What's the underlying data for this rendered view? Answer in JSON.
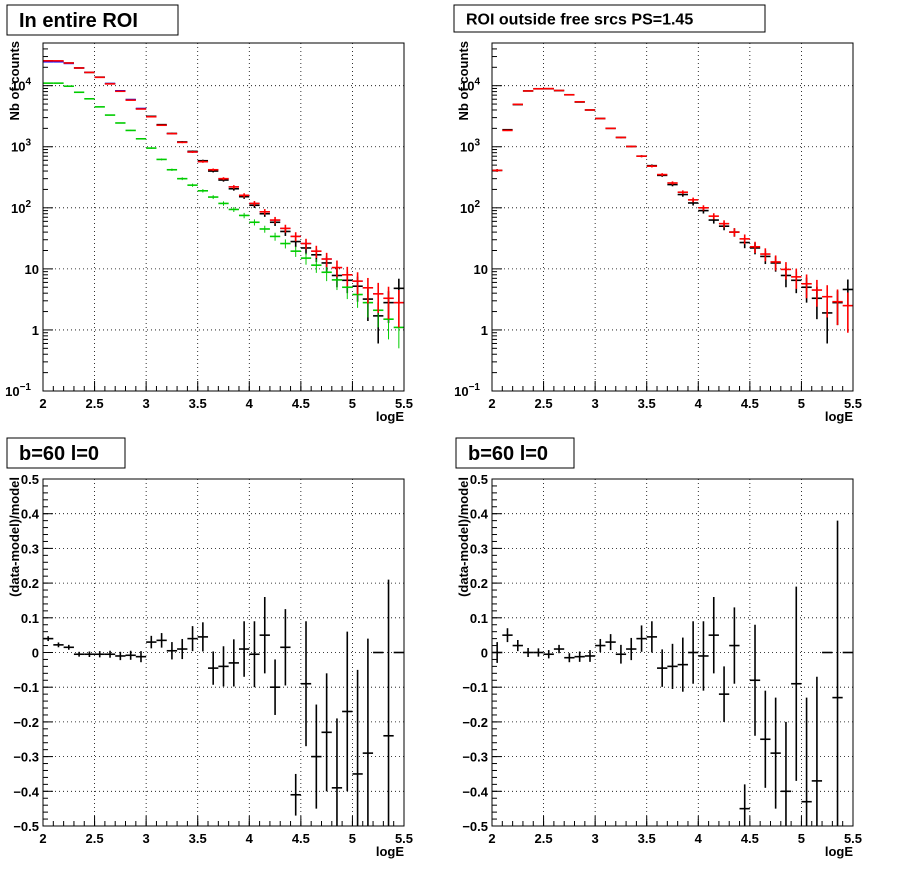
{
  "chart_data": [
    {
      "type": "scatter",
      "title": "In entire ROI",
      "xlabel": "logE",
      "ylabel": "Nb of counts",
      "xlim": [
        2,
        5.5
      ],
      "ylim": [
        0.1,
        50000
      ],
      "ylog": true,
      "grid": true,
      "x_ticks": [
        "2",
        "2.5",
        "3",
        "3.5",
        "4",
        "4.5",
        "5",
        "5.5"
      ],
      "y_ticks": [
        {
          "value": 0.1,
          "base": "10",
          "exp": "−1"
        },
        {
          "value": 1,
          "label": "1"
        },
        {
          "value": 10,
          "label": "10"
        },
        {
          "value": 100,
          "base": "10",
          "exp": "2"
        },
        {
          "value": 1000,
          "base": "10",
          "exp": "3"
        },
        {
          "value": 10000,
          "base": "10",
          "exp": "4"
        }
      ],
      "series": [
        {
          "color": "#000000",
          "x": [
            2.05,
            2.15,
            2.25,
            2.35,
            2.45,
            2.55,
            2.65,
            2.75,
            2.85,
            2.95,
            3.05,
            3.15,
            3.25,
            3.35,
            3.45,
            3.55,
            3.65,
            3.75,
            3.85,
            3.95,
            4.05,
            4.15,
            4.25,
            4.35,
            4.45,
            4.55,
            4.65,
            4.75,
            4.85,
            4.95,
            5.05,
            5.15,
            5.25,
            5.35,
            5.45
          ],
          "y": [
            25500,
            25000,
            23500,
            19500,
            16500,
            13800,
            10800,
            8200,
            5900,
            4200,
            3150,
            2300,
            1650,
            1200,
            840,
            590,
            400,
            285,
            205,
            152,
            110,
            80,
            58,
            41,
            28,
            22,
            17,
            12.5,
            7.8,
            6.5,
            5.2,
            3.2,
            1.7,
            2.8,
            4.8
          ],
          "err": [
            160,
            158,
            153,
            140,
            128,
            117,
            104,
            90,
            77,
            65,
            56,
            48,
            41,
            35,
            29,
            24,
            20,
            17,
            14,
            12,
            10.5,
            8.9,
            7.6,
            6.4,
            5.3,
            4.7,
            4.1,
            3.5,
            2.8,
            2.5,
            2.3,
            1.8,
            1.1,
            1.5,
            2.1
          ]
        },
        {
          "color": "#0000ff",
          "x": [
            2.05,
            2.15,
            2.25,
            2.35,
            2.45,
            2.55,
            2.65,
            2.75,
            2.85,
            2.95,
            3.05,
            3.15,
            3.25,
            3.35,
            3.45,
            3.55,
            3.65,
            3.75,
            3.85,
            3.95,
            4.05,
            4.15,
            4.25,
            4.35,
            4.45,
            4.55,
            4.65,
            4.75,
            4.85,
            4.95,
            5.05,
            5.15,
            5.25,
            5.35,
            5.45
          ],
          "y": [
            24500,
            24500,
            23000,
            19500,
            16500,
            13700,
            10900,
            8300,
            5950,
            4250,
            3100,
            2250,
            1640,
            1180,
            820,
            570,
            420,
            300,
            220,
            160,
            118,
            86,
            63,
            46,
            34,
            26,
            19.5,
            14.5,
            10.5,
            8,
            6.3,
            4.9,
            3.9,
            3.3,
            2.8
          ],
          "err": [
            0,
            0,
            0,
            0,
            0,
            0,
            0,
            0,
            0,
            0,
            0,
            0,
            0,
            0,
            0,
            0,
            0,
            0,
            0,
            0,
            0,
            0,
            0,
            0,
            0,
            0,
            0,
            0,
            0,
            0,
            0,
            0,
            0,
            0,
            0
          ]
        },
        {
          "color": "#00cc00",
          "x": [
            2.05,
            2.15,
            2.25,
            2.35,
            2.45,
            2.55,
            2.65,
            2.75,
            2.85,
            2.95,
            3.05,
            3.15,
            3.25,
            3.35,
            3.45,
            3.55,
            3.65,
            3.75,
            3.85,
            3.95,
            4.05,
            4.15,
            4.25,
            4.35,
            4.45,
            4.55,
            4.65,
            4.75,
            4.85,
            4.95,
            5.05,
            5.15,
            5.25,
            5.35,
            5.45
          ],
          "y": [
            11000,
            11000,
            9800,
            7800,
            6100,
            4500,
            3300,
            2450,
            1850,
            1350,
            950,
            620,
            420,
            300,
            235,
            190,
            150,
            118,
            94,
            75,
            58,
            45,
            34,
            26,
            19.5,
            15,
            11.5,
            8.8,
            6.6,
            5,
            3.8,
            2.8,
            2.1,
            1.5,
            1.1
          ],
          "err": [
            100,
            100,
            95,
            85,
            75,
            65,
            55,
            47,
            41,
            35,
            29,
            23,
            19,
            16,
            14,
            12,
            11,
            9.7,
            8.6,
            7.6,
            6.7,
            5.9,
            5.1,
            4.4,
            3.8,
            3.3,
            2.9,
            2.5,
            2.1,
            1.8,
            1.5,
            1.2,
            1,
            0.8,
            0.6
          ]
        },
        {
          "color": "#ff0000",
          "x": [
            2.05,
            2.15,
            2.25,
            2.35,
            2.45,
            2.55,
            2.65,
            2.75,
            2.85,
            2.95,
            3.05,
            3.15,
            3.25,
            3.35,
            3.45,
            3.55,
            3.65,
            3.75,
            3.85,
            3.95,
            4.05,
            4.15,
            4.25,
            4.35,
            4.45,
            4.55,
            4.65,
            4.75,
            4.85,
            4.95,
            5.05,
            5.15,
            5.25,
            5.35,
            5.45
          ],
          "y": [
            25500,
            25500,
            23500,
            19500,
            16500,
            13700,
            10700,
            8100,
            5800,
            4150,
            3100,
            2250,
            1640,
            1180,
            820,
            570,
            420,
            300,
            220,
            160,
            118,
            86,
            63,
            46,
            34,
            26,
            19.5,
            14.5,
            10.5,
            8,
            6.3,
            4.9,
            3.9,
            3.3,
            2.8
          ],
          "err": [
            160,
            160,
            153,
            140,
            128,
            117,
            103,
            90,
            76,
            64,
            56,
            47,
            40,
            34,
            29,
            24,
            20,
            17,
            15,
            13,
            11,
            9.3,
            7.9,
            6.8,
            5.8,
            5.1,
            4.4,
            3.8,
            3.2,
            2.8,
            2.5,
            2.2,
            2,
            1.8,
            1.7
          ]
        }
      ]
    },
    {
      "type": "scatter",
      "title": "ROI outside free srcs PS=1.45",
      "xlabel": "logE",
      "ylabel": "Nb of counts",
      "xlim": [
        2,
        5.5
      ],
      "ylim": [
        0.1,
        50000
      ],
      "ylog": true,
      "grid": true,
      "x_ticks": [
        "2",
        "2.5",
        "3",
        "3.5",
        "4",
        "4.5",
        "5",
        "5.5"
      ],
      "y_ticks": [
        {
          "value": 0.1,
          "base": "10",
          "exp": "−1"
        },
        {
          "value": 1,
          "label": "1"
        },
        {
          "value": 10,
          "label": "10"
        },
        {
          "value": 100,
          "base": "10",
          "exp": "2"
        },
        {
          "value": 1000,
          "base": "10",
          "exp": "3"
        },
        {
          "value": 10000,
          "base": "10",
          "exp": "4"
        }
      ],
      "series": [
        {
          "color": "#000000",
          "x": [
            2.05,
            2.15,
            2.25,
            2.35,
            2.45,
            2.55,
            2.65,
            2.75,
            2.85,
            2.95,
            3.05,
            3.15,
            3.25,
            3.35,
            3.45,
            3.55,
            3.65,
            3.75,
            3.85,
            3.95,
            4.05,
            4.15,
            4.25,
            4.35,
            4.45,
            4.55,
            4.65,
            4.75,
            4.85,
            4.95,
            5.05,
            5.15,
            5.25,
            5.35,
            5.45
          ],
          "y": [
            410,
            1900,
            4900,
            8200,
            8900,
            8900,
            8300,
            7100,
            5400,
            4000,
            2900,
            2000,
            1420,
            1010,
            700,
            490,
            340,
            240,
            165,
            120,
            90,
            63,
            50,
            40,
            27,
            22,
            16,
            12.5,
            7.8,
            6.5,
            5,
            3.3,
            1.9,
            2.8,
            4.6
          ],
          "err": [
            20,
            44,
            70,
            91,
            94,
            94,
            91,
            84,
            73,
            63,
            54,
            45,
            38,
            32,
            26,
            22,
            18,
            15,
            13,
            11,
            9.5,
            7.9,
            7.1,
            6.3,
            5.2,
            4.7,
            4,
            3.5,
            2.8,
            2.5,
            2.2,
            1.8,
            1.3,
            1.6,
            2.1
          ]
        },
        {
          "color": "#ff0000",
          "x": [
            2.05,
            2.15,
            2.25,
            2.35,
            2.45,
            2.55,
            2.65,
            2.75,
            2.85,
            2.95,
            3.05,
            3.15,
            3.25,
            3.35,
            3.45,
            3.55,
            3.65,
            3.75,
            3.85,
            3.95,
            4.05,
            4.15,
            4.25,
            4.35,
            4.45,
            4.55,
            4.65,
            4.75,
            4.85,
            4.95,
            5.05,
            5.15,
            5.25,
            5.35,
            5.45
          ],
          "y": [
            410,
            1850,
            4950,
            8200,
            8900,
            8950,
            8350,
            7100,
            5450,
            4000,
            2900,
            2000,
            1420,
            1010,
            700,
            480,
            350,
            255,
            180,
            135,
            100,
            73,
            55,
            40,
            31,
            23,
            17.5,
            13,
            9.8,
            7.4,
            5.7,
            4.5,
            3.5,
            2.9,
            2.5
          ],
          "err": [
            20,
            43,
            70,
            91,
            94,
            95,
            91,
            84,
            74,
            63,
            54,
            45,
            38,
            32,
            26,
            22,
            19,
            16,
            13,
            12,
            10,
            8.5,
            7.4,
            6.3,
            5.6,
            4.8,
            4.2,
            3.6,
            3.1,
            2.7,
            2.4,
            2.1,
            1.9,
            1.7,
            1.6
          ]
        }
      ]
    },
    {
      "type": "scatter",
      "title": "b=60 l=0",
      "xlabel": "logE",
      "ylabel": "(data-model)/model",
      "xlim": [
        2,
        5.5
      ],
      "ylim": [
        -0.5,
        0.5
      ],
      "ylog": false,
      "grid": true,
      "x_ticks": [
        "2",
        "2.5",
        "3",
        "3.5",
        "4",
        "4.5",
        "5",
        "5.5"
      ],
      "y_ticks": [
        "−0.5",
        "−0.4",
        "−0.3",
        "−0.2",
        "−0.1",
        "0",
        "0.1",
        "0.2",
        "0.3",
        "0.4",
        "0.5"
      ],
      "series": [
        {
          "color": "#000000",
          "x": [
            2.05,
            2.15,
            2.25,
            2.35,
            2.45,
            2.55,
            2.65,
            2.75,
            2.85,
            2.95,
            3.05,
            3.15,
            3.25,
            3.35,
            3.45,
            3.55,
            3.65,
            3.75,
            3.85,
            3.95,
            4.05,
            4.15,
            4.25,
            4.35,
            4.45,
            4.55,
            4.65,
            4.75,
            4.85,
            4.95,
            5.05,
            5.15,
            5.25,
            5.35,
            5.45
          ],
          "y": [
            0.04,
            0.022,
            0.015,
            -0.005,
            -0.005,
            -0.005,
            -0.005,
            -0.01,
            -0.008,
            -0.012,
            0.03,
            0.035,
            0.005,
            0.01,
            0.04,
            0.045,
            -0.045,
            -0.04,
            -0.03,
            0.01,
            -0.005,
            0.05,
            -0.1,
            0.015,
            -0.41,
            -0.09,
            -0.3,
            -0.23,
            -0.39,
            -0.17,
            -0.35,
            -0.29,
            0,
            -0.24,
            0
          ],
          "err": [
            0.007,
            0.007,
            0.007,
            0.007,
            0.008,
            0.009,
            0.01,
            0.012,
            0.013,
            0.016,
            0.018,
            0.021,
            0.025,
            0.029,
            0.036,
            0.042,
            0.048,
            0.058,
            0.068,
            0.08,
            0.095,
            0.11,
            0.08,
            0.11,
            0.06,
            0.18,
            0.15,
            0.17,
            0.2,
            0.23,
            0.3,
            0.33,
            0,
            0.45,
            0
          ]
        }
      ]
    },
    {
      "type": "scatter",
      "title": "b=60 l=0",
      "xlabel": "logE",
      "ylabel": "(data-model)/model",
      "xlim": [
        2,
        5.5
      ],
      "ylim": [
        -0.5,
        0.5
      ],
      "ylog": false,
      "grid": true,
      "x_ticks": [
        "2",
        "2.5",
        "3",
        "3.5",
        "4",
        "4.5",
        "5",
        "5.5"
      ],
      "y_ticks": [
        "−0.5",
        "−0.4",
        "−0.3",
        "−0.2",
        "−0.1",
        "0",
        "0.1",
        "0.2",
        "0.3",
        "0.4",
        "0.5"
      ],
      "series": [
        {
          "color": "#000000",
          "x": [
            2.05,
            2.15,
            2.25,
            2.35,
            2.45,
            2.55,
            2.65,
            2.75,
            2.85,
            2.95,
            3.05,
            3.15,
            3.25,
            3.35,
            3.45,
            3.55,
            3.65,
            3.75,
            3.85,
            3.95,
            4.05,
            4.15,
            4.25,
            4.35,
            4.45,
            4.55,
            4.65,
            4.75,
            4.85,
            4.95,
            5.05,
            5.15,
            5.25,
            5.35,
            5.45
          ],
          "y": [
            0,
            0.05,
            0.02,
            0,
            0,
            -0.005,
            0.01,
            -0.015,
            -0.012,
            -0.01,
            0.02,
            0.03,
            -0.005,
            0.01,
            0.04,
            0.045,
            -0.045,
            -0.04,
            -0.035,
            0,
            -0.01,
            0.05,
            -0.12,
            0.02,
            -0.45,
            -0.08,
            -0.25,
            -0.29,
            -0.4,
            -0.09,
            -0.43,
            -0.37,
            0,
            -0.13,
            0
          ],
          "err": [
            0.03,
            0.02,
            0.016,
            0.013,
            0.012,
            0.012,
            0.012,
            0.013,
            0.015,
            0.017,
            0.019,
            0.023,
            0.027,
            0.032,
            0.038,
            0.045,
            0.054,
            0.065,
            0.078,
            0.09,
            0.1,
            0.11,
            0.08,
            0.11,
            0.07,
            0.16,
            0.14,
            0.16,
            0.2,
            0.28,
            0.3,
            0.3,
            0,
            0.51,
            0
          ]
        }
      ]
    }
  ]
}
